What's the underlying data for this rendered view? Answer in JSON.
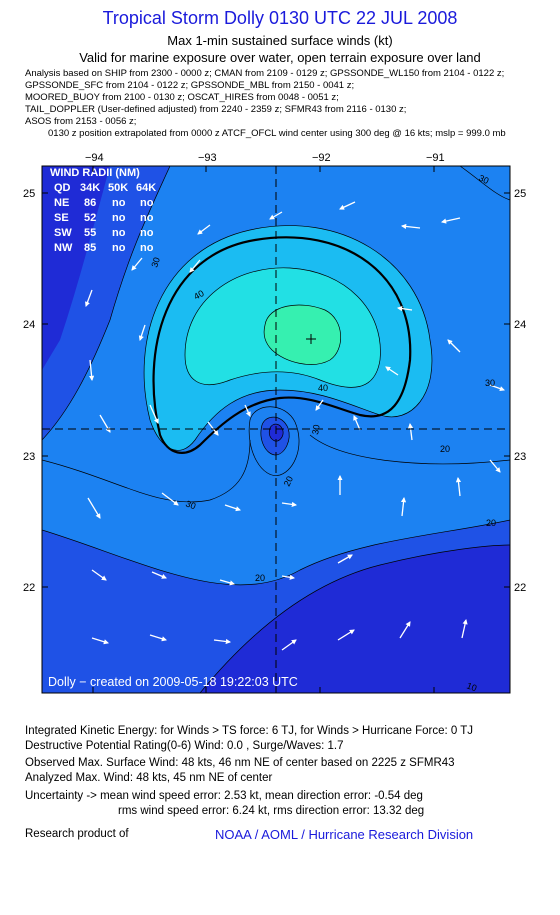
{
  "header": {
    "title": "Tropical Storm Dolly 0130 UTC 22 JUL 2008",
    "subtitle1": "Max 1-min sustained surface winds (kt)",
    "subtitle2": "Valid for marine exposure over water, open terrain exposure over land"
  },
  "analysis_lines": [
    "Analysis based on   SHIP from 2300 - 0000 z;  CMAN from 2109 - 0129 z;  GPSSONDE_WL150 from 2104 - 0122 z;",
    "GPSSONDE_SFC from 2104 - 0122 z;  GPSSONDE_MBL from 2150 - 0041 z;",
    "MOORED_BUOY from 2100 - 0130 z;  OSCAT_HIRES from 0048 - 0051 z;",
    "TAIL_DOPPLER (User-defined adjusted) from 2240 - 2359 z;  SFMR43 from 2116 - 0130 z;",
    "ASOS from 2153 - 0056 z;"
  ],
  "position_line": "0130 z position extrapolated from 0000 z ATCF_OFCL wind center using 300 deg @ 16 kts; mslp = 999.0 mb",
  "map": {
    "lon_ticks": [
      "−94",
      "−93",
      "−92",
      "−91"
    ],
    "lat_ticks": [
      "25",
      "24",
      "23",
      "22"
    ],
    "credit": "Dolly − created on 2009-05-18 19:22:03 UTC",
    "contour_labels": [
      "30",
      "30",
      "40",
      "40",
      "30",
      "30",
      "20",
      "20",
      "20",
      "20",
      "10",
      "30"
    ],
    "colors": {
      "band_0_10": "#1f2bd6",
      "band_10_20": "#1f52e6",
      "band_20_30": "#1c82f2",
      "band_30_40": "#1bbcf2",
      "band_40_50": "#22e0e4",
      "band_50": "#36f0b0"
    }
  },
  "wind_radii": {
    "title": "WIND RADII (NM)",
    "header": [
      "QD",
      "34K",
      "50K",
      "64K"
    ],
    "rows": [
      [
        "NE",
        "86",
        "no",
        "no"
      ],
      [
        "SE",
        "52",
        "no",
        "no"
      ],
      [
        "SW",
        "55",
        "no",
        "no"
      ],
      [
        "NW",
        "85",
        "no",
        "no"
      ]
    ]
  },
  "footer": {
    "ike": "Integrated Kinetic Energy:  for Winds > TS force: 6 TJ,  for Winds > Hurricane Force: 0 TJ",
    "drp": "Destructive Potential Rating(0-6)   Wind: 0.0 , Surge/Waves: 1.7",
    "observed": "Observed Max. Surface Wind: 48 kts, 46 nm NE of center based on 2225 z SFMR43",
    "analyzed": "Analyzed Max. Wind: 48 kts, 45 nm NE of center",
    "uncertainty1": "Uncertainty -> mean wind speed error: 2.53 kt,   mean direction error:  -0.54 deg",
    "uncertainty2": "rms wind speed error: 6.24 kt,   rms direction error: 13.32 deg",
    "research": "Research product of",
    "org": "NOAA / AOML / Hurricane Research Division"
  }
}
